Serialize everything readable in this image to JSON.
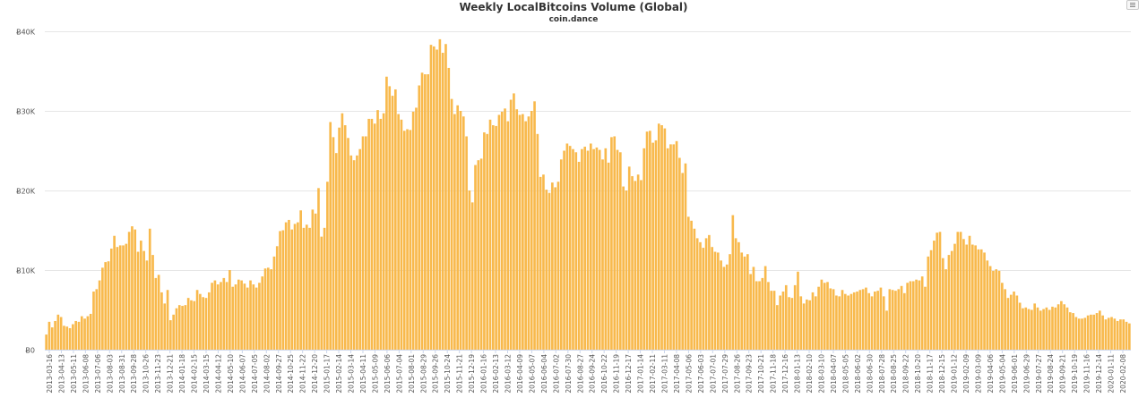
{
  "chart_data": {
    "type": "bar",
    "title": "Weekly LocalBitcoins Volume (Global)",
    "subtitle": "coin.dance",
    "xlabel": "",
    "ylabel": "",
    "ylim": [
      0,
      40000
    ],
    "y_ticks": [
      0,
      10000,
      20000,
      30000,
      40000
    ],
    "y_tick_labels": [
      "Ƀ0",
      "Ƀ10K",
      "Ƀ20K",
      "Ƀ30K",
      "Ƀ40K"
    ],
    "grid": true,
    "legend": "none",
    "bar_color": "#f8b94c",
    "x_tick_labels": [
      "2013-03-16",
      "2013-04-13",
      "2013-05-11",
      "2013-06-08",
      "2013-07-06",
      "2013-08-03",
      "2013-08-31",
      "2013-09-28",
      "2013-10-26",
      "2013-11-23",
      "2013-12-21",
      "2014-01-18",
      "2014-02-15",
      "2014-03-15",
      "2014-04-12",
      "2014-05-10",
      "2014-06-07",
      "2014-07-05",
      "2014-08-02",
      "2014-09-27",
      "2014-10-25",
      "2014-11-22",
      "2014-12-20",
      "2015-01-17",
      "2015-02-14",
      "2015-03-14",
      "2015-04-11",
      "2015-05-09",
      "2015-06-06",
      "2015-07-04",
      "2015-08-01",
      "2015-08-29",
      "2015-09-26",
      "2015-10-24",
      "2015-11-21",
      "2015-12-19",
      "2016-01-16",
      "2016-02-13",
      "2016-03-12",
      "2016-04-09",
      "2016-05-07",
      "2016-06-04",
      "2016-07-02",
      "2016-07-30",
      "2016-08-27",
      "2016-09-24",
      "2016-10-22",
      "2016-11-19",
      "2016-12-17",
      "2017-01-14",
      "2017-02-11",
      "2017-03-11",
      "2017-04-08",
      "2017-05-06",
      "2017-06-03",
      "2017-07-01",
      "2017-07-29",
      "2017-08-26",
      "2017-09-23",
      "2017-10-21",
      "2017-11-18",
      "2017-12-16",
      "2018-01-13",
      "2018-02-10",
      "2018-03-10",
      "2018-04-07",
      "2018-05-05",
      "2018-06-02",
      "2018-06-30",
      "2018-07-28",
      "2018-08-25",
      "2018-09-22",
      "2018-10-20",
      "2018-11-17",
      "2018-12-15",
      "2019-01-12",
      "2019-02-09",
      "2019-03-09",
      "2019-04-06",
      "2019-05-04",
      "2019-06-01",
      "2019-06-29",
      "2019-07-27",
      "2019-08-24",
      "2019-09-21",
      "2019-10-19",
      "2019-11-16",
      "2019-12-14",
      "2020-01-11",
      "2020-02-08"
    ],
    "values": [
      1900,
      3500,
      2800,
      3600,
      4400,
      4100,
      3000,
      2900,
      2700,
      3200,
      3600,
      3500,
      4200,
      3900,
      4200,
      4500,
      7300,
      7600,
      8700,
      10300,
      11000,
      11100,
      12700,
      14300,
      12900,
      13100,
      13100,
      13300,
      14800,
      15500,
      15100,
      12300,
      13700,
      12400,
      11200,
      15200,
      11900,
      9000,
      9400,
      7200,
      5800,
      7500,
      3700,
      4400,
      5200,
      5600,
      5500,
      5600,
      6500,
      6200,
      6100,
      7500,
      7000,
      6600,
      6500,
      7200,
      8400,
      8700,
      8200,
      8500,
      9000,
      8500,
      10000,
      7900,
      8200,
      8800,
      8700,
      8300,
      7800,
      8700,
      8200,
      7800,
      8400,
      9200,
      10200,
      10300,
      10100,
      11700,
      13000,
      14900,
      15000,
      16000,
      16300,
      15100,
      15800,
      16000,
      17500,
      15300,
      15700,
      15300,
      17600,
      17100,
      20300,
      14200,
      15300,
      21100,
      28600,
      26700,
      24700,
      27900,
      29700,
      28200,
      26600,
      24400,
      23800,
      24400,
      25200,
      26800,
      26800,
      29000,
      29000,
      28400,
      30100,
      29000,
      29700,
      34300,
      33100,
      31900,
      32700,
      29600,
      28900,
      27500,
      27700,
      27600,
      29900,
      30400,
      33200,
      34800,
      34600,
      34600,
      38300,
      38100,
      37700,
      39000,
      37300,
      38400,
      35400,
      31500,
      29600,
      30700,
      30000,
      29300,
      26800,
      20000,
      18500,
      23200,
      23800,
      24000,
      27300,
      27100,
      28900,
      28200,
      28100,
      29500,
      29900,
      30300,
      28700,
      31400,
      32200,
      30200,
      29500,
      29600,
      28700,
      29300,
      30000,
      31200,
      27100,
      21700,
      22000,
      20100,
      19700,
      21000,
      20400,
      21100,
      23900,
      25000,
      25900,
      25600,
      25200,
      24800,
      23600,
      25200,
      25500,
      25000,
      25900,
      25200,
      25400,
      25100,
      23900,
      25300,
      23500,
      26700,
      26800,
      25100,
      24800,
      20500,
      20000,
      23000,
      21800,
      21200,
      22000,
      21300,
      25300,
      27400,
      27500,
      26000,
      26300,
      28400,
      28200,
      27800,
      25300,
      25800,
      25800,
      26200,
      24100,
      22200,
      23400,
      16700,
      16200,
      15200,
      14000,
      13500,
      12800,
      14000,
      14400,
      12900,
      12300,
      12200,
      11200,
      10400,
      10700,
      12000,
      16900,
      14000,
      13500,
      12200,
      11700,
      12000,
      9500,
      10400,
      8600,
      8600,
      9000,
      10500,
      8500,
      7400,
      7400,
      5600,
      6800,
      7300,
      8100,
      6600,
      6500,
      8100,
      9800,
      6700,
      5800,
      6300,
      6200,
      7200,
      6700,
      7900,
      8800,
      8400,
      8500,
      7700,
      7600,
      6800,
      6700,
      7500,
      7000,
      6800,
      7000,
      7200,
      7300,
      7500,
      7600,
      7800,
      7100,
      6700,
      7300,
      7400,
      7800,
      6700,
      4900,
      7600,
      7500,
      7400,
      7600,
      8000,
      7100,
      8400,
      8600,
      8600,
      8800,
      8700,
      9200,
      7900,
      11700,
      12500,
      13700,
      14700,
      14800,
      11500,
      10100,
      11900,
      12400,
      13300,
      14800,
      14800,
      13900,
      13200,
      14300,
      13200,
      13100,
      12600,
      12600,
      12200,
      11200,
      10500,
      9900,
      10100,
      9900,
      8400,
      7600,
      6500,
      6900,
      7300,
      6800,
      5900,
      5200,
      5300,
      5100,
      5000,
      5800,
      5300,
      4900,
      5100,
      5300,
      5000,
      5400,
      5300,
      5700,
      6100,
      5700,
      5300,
      4700,
      4600,
      4100,
      3900,
      3900,
      4000,
      4300,
      4400,
      4400,
      4600,
      4900,
      4300,
      3800,
      4000,
      4100,
      3900,
      3600,
      3800,
      3800,
      3500,
      3300
    ]
  }
}
